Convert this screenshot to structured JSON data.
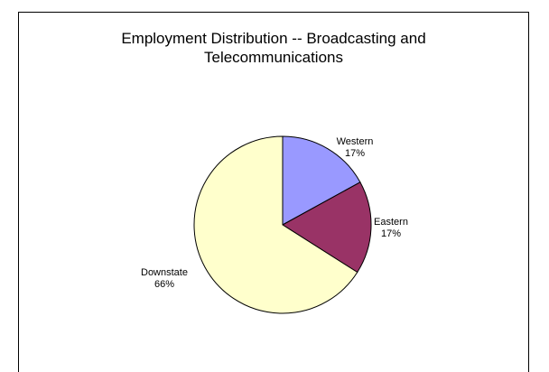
{
  "chart_data": {
    "type": "pie",
    "title": "Employment  Distribution -- Broadcasting and\nTelecommunications",
    "categories": [
      "Western",
      "Eastern",
      "Downstate"
    ],
    "values": [
      17,
      17,
      66
    ],
    "labels": [
      "Western\n17%",
      "Eastern\n17%",
      "Downstate\n66%"
    ],
    "colors": [
      "#9999ff",
      "#993366",
      "#ffffcc"
    ],
    "legend": "none",
    "start_angle": "12 o'clock",
    "direction": "clockwise"
  }
}
